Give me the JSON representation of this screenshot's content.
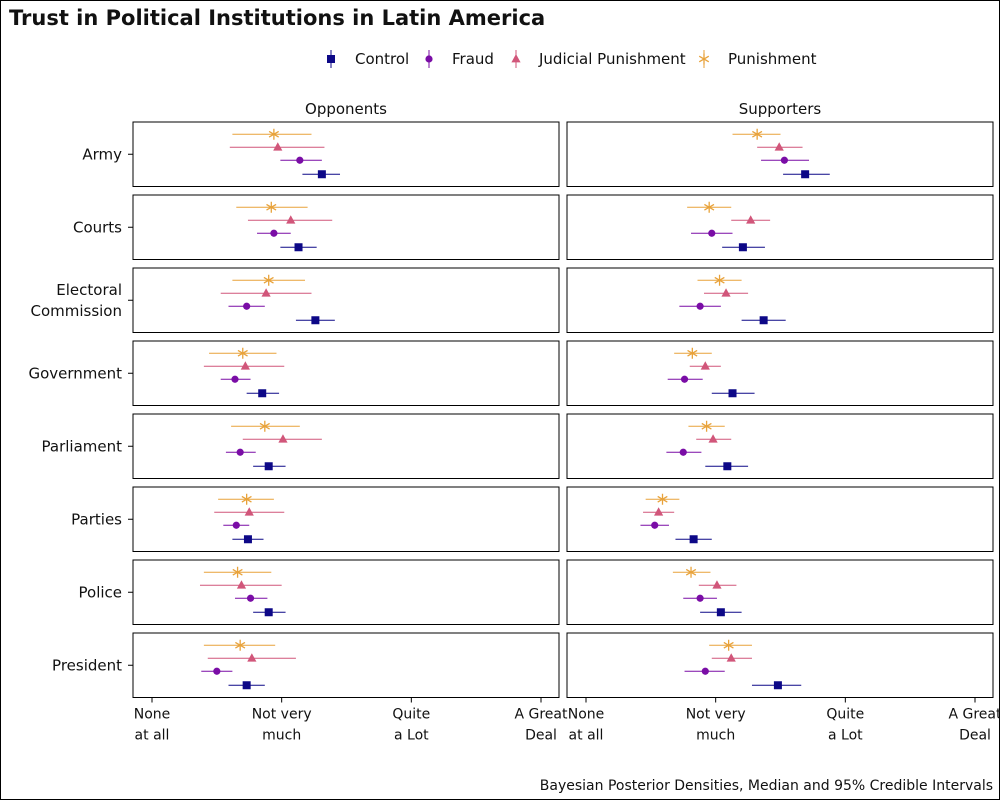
{
  "chart_data": {
    "type": "pointrange",
    "title": "Trust in Political Institutions in Latin America",
    "caption": "Bayesian Posterior Densities, Median and 95% Credible Intervals",
    "facets": [
      "Opponents",
      "Supporters"
    ],
    "rows": [
      "Army",
      "Courts",
      "Electoral Commission",
      "Government",
      "Parliament",
      "Parties",
      "Police",
      "President"
    ],
    "row_label_lines": {
      "Army": [
        "Army"
      ],
      "Courts": [
        "Courts"
      ],
      "Electoral Commission": [
        "Electoral",
        "Commission"
      ],
      "Government": [
        "Government"
      ],
      "Parliament": [
        "Parliament"
      ],
      "Parties": [
        "Parties"
      ],
      "Police": [
        "Police"
      ],
      "President": [
        "President"
      ]
    },
    "x_scale": {
      "min": 1,
      "max": 4,
      "ticks": [
        {
          "value": 1,
          "lines": [
            "None",
            "at all"
          ]
        },
        {
          "value": 2,
          "lines": [
            "Not very",
            "much"
          ]
        },
        {
          "value": 3,
          "lines": [
            "Quite",
            "a Lot"
          ]
        },
        {
          "value": 4,
          "lines": [
            "A Great",
            "Deal"
          ]
        }
      ]
    },
    "series": [
      {
        "name": "Punishment",
        "color": "#E8A23A",
        "marker": "asterisk"
      },
      {
        "name": "Judicial Punishment",
        "color": "#D1567A",
        "marker": "triangle"
      },
      {
        "name": "Fraud",
        "color": "#7A0DA6",
        "marker": "circle"
      },
      {
        "name": "Control",
        "color": "#0D0887",
        "marker": "square"
      }
    ],
    "legend_order": [
      "Control",
      "Fraud",
      "Judicial Punishment",
      "Punishment"
    ],
    "legend_position": "top",
    "data": {
      "Opponents": {
        "Army": {
          "Punishment": [
            1.62,
            1.94,
            2.23
          ],
          "Judicial Punishment": [
            1.6,
            1.97,
            2.33
          ],
          "Fraud": [
            1.99,
            2.14,
            2.31
          ],
          "Control": [
            2.16,
            2.31,
            2.45
          ]
        },
        "Courts": {
          "Punishment": [
            1.65,
            1.92,
            2.2
          ],
          "Judicial Punishment": [
            1.74,
            2.07,
            2.39
          ],
          "Fraud": [
            1.81,
            1.94,
            2.07
          ],
          "Control": [
            1.99,
            2.13,
            2.27
          ]
        },
        "Electoral Commission": {
          "Punishment": [
            1.62,
            1.9,
            2.18
          ],
          "Judicial Punishment": [
            1.53,
            1.88,
            2.23
          ],
          "Fraud": [
            1.59,
            1.73,
            1.87
          ],
          "Control": [
            2.11,
            2.26,
            2.41
          ]
        },
        "Government": {
          "Punishment": [
            1.44,
            1.7,
            1.96
          ],
          "Judicial Punishment": [
            1.4,
            1.72,
            2.02
          ],
          "Fraud": [
            1.53,
            1.64,
            1.76
          ],
          "Control": [
            1.73,
            1.85,
            1.98
          ]
        },
        "Parliament": {
          "Punishment": [
            1.61,
            1.87,
            2.14
          ],
          "Judicial Punishment": [
            1.7,
            2.01,
            2.31
          ],
          "Fraud": [
            1.57,
            1.68,
            1.8
          ],
          "Control": [
            1.78,
            1.9,
            2.03
          ]
        },
        "Parties": {
          "Punishment": [
            1.51,
            1.73,
            1.94
          ],
          "Judicial Punishment": [
            1.48,
            1.75,
            2.02
          ],
          "Fraud": [
            1.55,
            1.65,
            1.75
          ],
          "Control": [
            1.62,
            1.74,
            1.86
          ]
        },
        "Police": {
          "Punishment": [
            1.4,
            1.66,
            1.92
          ],
          "Judicial Punishment": [
            1.37,
            1.69,
            2.0
          ],
          "Fraud": [
            1.64,
            1.76,
            1.89
          ],
          "Control": [
            1.78,
            1.9,
            2.03
          ]
        },
        "President": {
          "Punishment": [
            1.4,
            1.68,
            1.95
          ],
          "Judicial Punishment": [
            1.43,
            1.77,
            2.11
          ],
          "Fraud": [
            1.38,
            1.5,
            1.62
          ],
          "Control": [
            1.59,
            1.73,
            1.87
          ]
        }
      },
      "Supporters": {
        "Army": {
          "Punishment": [
            2.13,
            2.32,
            2.5
          ],
          "Judicial Punishment": [
            2.32,
            2.49,
            2.67
          ],
          "Fraud": [
            2.35,
            2.53,
            2.72
          ],
          "Control": [
            2.52,
            2.69,
            2.88
          ]
        },
        "Courts": {
          "Punishment": [
            1.78,
            1.95,
            2.12
          ],
          "Judicial Punishment": [
            2.12,
            2.27,
            2.42
          ],
          "Fraud": [
            1.81,
            1.97,
            2.13
          ],
          "Control": [
            2.05,
            2.21,
            2.38
          ]
        },
        "Electoral Commission": {
          "Punishment": [
            1.86,
            2.03,
            2.2
          ],
          "Judicial Punishment": [
            1.91,
            2.08,
            2.25
          ],
          "Fraud": [
            1.72,
            1.88,
            2.04
          ],
          "Control": [
            2.2,
            2.37,
            2.54
          ]
        },
        "Government": {
          "Punishment": [
            1.68,
            1.82,
            1.97
          ],
          "Judicial Punishment": [
            1.8,
            1.92,
            2.04
          ],
          "Fraud": [
            1.63,
            1.76,
            1.9
          ],
          "Control": [
            1.97,
            2.13,
            2.3
          ]
        },
        "Parliament": {
          "Punishment": [
            1.79,
            1.93,
            2.07
          ],
          "Judicial Punishment": [
            1.85,
            1.98,
            2.12
          ],
          "Fraud": [
            1.62,
            1.75,
            1.89
          ],
          "Control": [
            1.92,
            2.09,
            2.25
          ]
        },
        "Parties": {
          "Punishment": [
            1.46,
            1.59,
            1.72
          ],
          "Judicial Punishment": [
            1.44,
            1.56,
            1.68
          ],
          "Fraud": [
            1.42,
            1.53,
            1.64
          ],
          "Control": [
            1.69,
            1.83,
            1.97
          ]
        },
        "Police": {
          "Punishment": [
            1.67,
            1.81,
            1.96
          ],
          "Judicial Punishment": [
            1.87,
            2.01,
            2.16
          ],
          "Fraud": [
            1.75,
            1.88,
            2.01
          ],
          "Control": [
            1.88,
            2.04,
            2.2
          ]
        },
        "President": {
          "Punishment": [
            1.95,
            2.1,
            2.28
          ],
          "Judicial Punishment": [
            1.97,
            2.12,
            2.28
          ],
          "Fraud": [
            1.76,
            1.92,
            2.07
          ],
          "Control": [
            2.28,
            2.48,
            2.66
          ]
        }
      }
    }
  }
}
